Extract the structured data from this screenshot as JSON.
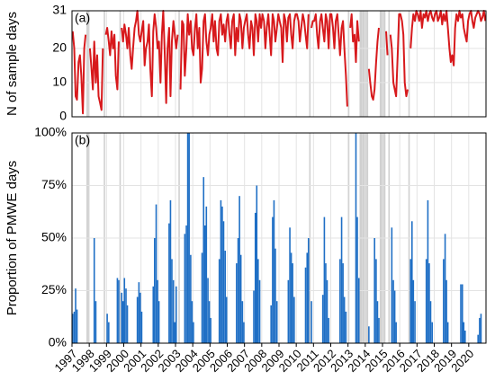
{
  "chart_data": {
    "type": "panels",
    "grid": true,
    "xlim": [
      1997,
      2021
    ],
    "xticks": [
      1997,
      1998,
      1999,
      2000,
      2001,
      2002,
      2003,
      2004,
      2005,
      2006,
      2007,
      2008,
      2009,
      2010,
      2011,
      2012,
      2013,
      2014,
      2015,
      2016,
      2017,
      2018,
      2019,
      2020
    ],
    "x": [
      1997.04,
      1997.13,
      1997.21,
      1997.29,
      1997.38,
      1997.46,
      1997.54,
      1997.63,
      1997.71,
      1997.79,
      1997.88,
      1997.96,
      1998.04,
      1998.13,
      1998.21,
      1998.29,
      1998.38,
      1998.46,
      1998.54,
      1998.63,
      1998.71,
      1998.79,
      1998.88,
      1998.96,
      1999.04,
      1999.13,
      1999.21,
      1999.29,
      1999.38,
      1999.46,
      1999.54,
      1999.63,
      1999.71,
      1999.79,
      1999.88,
      1999.96,
      2000.04,
      2000.13,
      2000.21,
      2000.29,
      2000.38,
      2000.46,
      2000.54,
      2000.63,
      2000.71,
      2000.79,
      2000.88,
      2000.96,
      2001.04,
      2001.13,
      2001.21,
      2001.29,
      2001.38,
      2001.46,
      2001.54,
      2001.63,
      2001.71,
      2001.79,
      2001.88,
      2001.96,
      2002.04,
      2002.13,
      2002.21,
      2002.29,
      2002.38,
      2002.46,
      2002.54,
      2002.63,
      2002.71,
      2002.79,
      2002.88,
      2002.96,
      2003.04,
      2003.13,
      2003.21,
      2003.29,
      2003.38,
      2003.46,
      2003.54,
      2003.63,
      2003.71,
      2003.79,
      2003.88,
      2003.96,
      2004.04,
      2004.13,
      2004.21,
      2004.29,
      2004.38,
      2004.46,
      2004.54,
      2004.63,
      2004.71,
      2004.79,
      2004.88,
      2004.96,
      2005.04,
      2005.13,
      2005.21,
      2005.29,
      2005.38,
      2005.46,
      2005.54,
      2005.63,
      2005.71,
      2005.79,
      2005.88,
      2005.96,
      2006.04,
      2006.13,
      2006.21,
      2006.29,
      2006.38,
      2006.46,
      2006.54,
      2006.63,
      2006.71,
      2006.79,
      2006.88,
      2006.96,
      2007.04,
      2007.13,
      2007.21,
      2007.29,
      2007.38,
      2007.46,
      2007.54,
      2007.63,
      2007.71,
      2007.79,
      2007.88,
      2007.96,
      2008.04,
      2008.13,
      2008.21,
      2008.29,
      2008.38,
      2008.46,
      2008.54,
      2008.63,
      2008.71,
      2008.79,
      2008.88,
      2008.96,
      2009.04,
      2009.13,
      2009.21,
      2009.29,
      2009.38,
      2009.46,
      2009.54,
      2009.63,
      2009.71,
      2009.79,
      2009.88,
      2009.96,
      2010.04,
      2010.13,
      2010.21,
      2010.29,
      2010.38,
      2010.46,
      2010.54,
      2010.63,
      2010.71,
      2010.79,
      2010.88,
      2010.96,
      2011.04,
      2011.13,
      2011.21,
      2011.29,
      2011.38,
      2011.46,
      2011.54,
      2011.63,
      2011.71,
      2011.79,
      2011.88,
      2011.96,
      2012.04,
      2012.13,
      2012.21,
      2012.29,
      2012.38,
      2012.46,
      2012.54,
      2012.63,
      2012.71,
      2012.79,
      2012.88,
      2012.96,
      2013.04,
      2013.13,
      2013.21,
      2013.29,
      2013.38,
      2013.46,
      2013.54,
      2013.63,
      2013.71,
      2013.79,
      2013.88,
      2013.96,
      2014.04,
      2014.13,
      2014.21,
      2014.29,
      2014.38,
      2014.46,
      2014.54,
      2014.63,
      2014.71,
      2014.79,
      2014.88,
      2014.96,
      2015.04,
      2015.13,
      2015.21,
      2015.29,
      2015.38,
      2015.46,
      2015.54,
      2015.63,
      2015.71,
      2015.79,
      2015.88,
      2015.96,
      2016.04,
      2016.13,
      2016.21,
      2016.29,
      2016.38,
      2016.46,
      2016.54,
      2016.63,
      2016.71,
      2016.79,
      2016.88,
      2016.96,
      2017.04,
      2017.13,
      2017.21,
      2017.29,
      2017.38,
      2017.46,
      2017.54,
      2017.63,
      2017.71,
      2017.79,
      2017.88,
      2017.96,
      2018.04,
      2018.13,
      2018.21,
      2018.29,
      2018.38,
      2018.46,
      2018.54,
      2018.63,
      2018.71,
      2018.79,
      2018.88,
      2018.96,
      2019.04,
      2019.13,
      2019.21,
      2019.29,
      2019.38,
      2019.46,
      2019.54,
      2019.63,
      2019.71,
      2019.79,
      2019.88,
      2019.96,
      2020.04,
      2020.13,
      2020.21,
      2020.29,
      2020.38,
      2020.46,
      2020.54,
      2020.63,
      2020.71,
      2020.79,
      2020.88,
      2020.96
    ],
    "panels": [
      {
        "type": "line",
        "label": "(a)",
        "ylabel": "N of sample days",
        "color": "#d7191c",
        "ylim": [
          0,
          31
        ],
        "yticks": [
          0,
          10,
          20,
          31
        ],
        "values": [
          25,
          20,
          6,
          5,
          16,
          18,
          12,
          1,
          20,
          24,
          null,
          null,
          20,
          14,
          8,
          22,
          10,
          18,
          6,
          4,
          2,
          20,
          null,
          24,
          26,
          22,
          18,
          25,
          20,
          24,
          12,
          8,
          22,
          null,
          26,
          22,
          27,
          24,
          20,
          26,
          18,
          14,
          20,
          26,
          28,
          31,
          24,
          22,
          25,
          28,
          15,
          20,
          22,
          27,
          14,
          6,
          25,
          30,
          26,
          20,
          22,
          10,
          24,
          31,
          18,
          4,
          20,
          26,
          6,
          22,
          28,
          24,
          20,
          24,
          null,
          8,
          28,
          27,
          12,
          20,
          30,
          24,
          28,
          20,
          18,
          26,
          30,
          20,
          26,
          10,
          14,
          28,
          30,
          22,
          18,
          24,
          26,
          30,
          22,
          28,
          20,
          18,
          28,
          30,
          24,
          27,
          22,
          28,
          30,
          24,
          20,
          28,
          30,
          18,
          26,
          22,
          30,
          28,
          20,
          26,
          28,
          30,
          24,
          20,
          28,
          26,
          18,
          30,
          28,
          22,
          30,
          26,
          30,
          28,
          20,
          26,
          30,
          24,
          18,
          30,
          28,
          22,
          26,
          30,
          28,
          26,
          16,
          30,
          28,
          22,
          29,
          30,
          24,
          20,
          28,
          30,
          30,
          28,
          22,
          26,
          30,
          28,
          24,
          20,
          30,
          null,
          26,
          28,
          28,
          30,
          24,
          20,
          28,
          30,
          26,
          22,
          30,
          28,
          20,
          30,
          30,
          26,
          20,
          28,
          30,
          24,
          18,
          26,
          28,
          20,
          12,
          3,
          null,
          26,
          30,
          22,
          24,
          16,
          28,
          22,
          null,
          null,
          null,
          null,
          null,
          null,
          14,
          10,
          6,
          5,
          8,
          16,
          22,
          26,
          null,
          null,
          null,
          null,
          25,
          18,
          null,
          24,
          20,
          10,
          8,
          6,
          18,
          30,
          30,
          28,
          24,
          10,
          6,
          8,
          null,
          20,
          26,
          30,
          28,
          31,
          30,
          28,
          31,
          26,
          30,
          29,
          31,
          28,
          30,
          31,
          29,
          28,
          30,
          31,
          28,
          29,
          31,
          27,
          30,
          28,
          31,
          26,
          20,
          16,
          18,
          15,
          26,
          30,
          28,
          31,
          29,
          30,
          26,
          24,
          22,
          28,
          30,
          31,
          28,
          26,
          29,
          30,
          31,
          30,
          28,
          29,
          31,
          28
        ]
      },
      {
        "type": "bar",
        "label": "(b)",
        "ylabel": "Proportion of PMWE days",
        "color": "#1f6fc5",
        "ylim": [
          0,
          100
        ],
        "yticks": [
          {
            "value": 0,
            "label": "0%"
          },
          {
            "value": 25,
            "label": "25%"
          },
          {
            "value": 50,
            "label": "50%"
          },
          {
            "value": 75,
            "label": "75%"
          },
          {
            "value": 100,
            "label": "100%"
          }
        ],
        "values": [
          14,
          15,
          26,
          16,
          0,
          0,
          0,
          0,
          0,
          0,
          null,
          null,
          0,
          0,
          0,
          50,
          20,
          0,
          0,
          0,
          0,
          0,
          null,
          0,
          14,
          10,
          0,
          0,
          0,
          0,
          0,
          31,
          30,
          null,
          24,
          20,
          31,
          26,
          18,
          0,
          0,
          0,
          0,
          0,
          0,
          22,
          29,
          24,
          15,
          0,
          0,
          0,
          0,
          0,
          0,
          0,
          27,
          50,
          66,
          30,
          20,
          0,
          0,
          0,
          0,
          0,
          0,
          57,
          68,
          40,
          30,
          10,
          27,
          0,
          null,
          0,
          0,
          0,
          52,
          56,
          100,
          100,
          42,
          20,
          10,
          0,
          0,
          0,
          0,
          0,
          43,
          79,
          56,
          65,
          31,
          20,
          12,
          0,
          0,
          0,
          0,
          0,
          40,
          68,
          65,
          58,
          44,
          22,
          0,
          0,
          0,
          0,
          0,
          0,
          38,
          50,
          70,
          42,
          20,
          10,
          0,
          0,
          0,
          0,
          0,
          0,
          25,
          62,
          75,
          40,
          30,
          0,
          0,
          0,
          0,
          0,
          0,
          0,
          18,
          60,
          68,
          45,
          20,
          0,
          0,
          0,
          0,
          0,
          0,
          0,
          30,
          55,
          43,
          38,
          22,
          0,
          0,
          0,
          0,
          0,
          0,
          0,
          36,
          43,
          50,
          null,
          20,
          0,
          0,
          0,
          0,
          0,
          0,
          0,
          23,
          60,
          38,
          30,
          12,
          0,
          0,
          0,
          0,
          0,
          0,
          0,
          40,
          60,
          38,
          22,
          15,
          0,
          null,
          0,
          0,
          0,
          0,
          100,
          60,
          31,
          null,
          null,
          null,
          null,
          null,
          null,
          8,
          0,
          0,
          0,
          50,
          40,
          20,
          12,
          null,
          null,
          null,
          null,
          0,
          0,
          null,
          0,
          55,
          30,
          25,
          10,
          0,
          0,
          0,
          0,
          0,
          0,
          0,
          0,
          null,
          40,
          58,
          30,
          20,
          0,
          0,
          0,
          0,
          0,
          0,
          0,
          40,
          68,
          38,
          20,
          10,
          0,
          0,
          0,
          0,
          0,
          0,
          0,
          40,
          52,
          30,
          10,
          0,
          0,
          0,
          0,
          0,
          0,
          0,
          0,
          28,
          28,
          10,
          6,
          0,
          0,
          0,
          0,
          0,
          0,
          0,
          0,
          4,
          12,
          14,
          0,
          0,
          0
        ]
      }
    ]
  }
}
